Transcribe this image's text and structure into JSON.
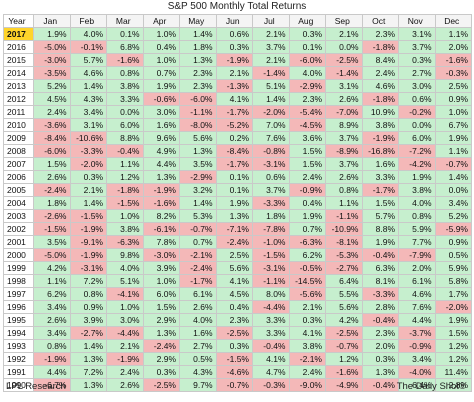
{
  "chart_data": {
    "type": "table",
    "title": "S&P 500 Monthly Total Returns",
    "year_header": "Year",
    "columns": [
      "Jan",
      "Feb",
      "Mar",
      "Apr",
      "May",
      "Jun",
      "Jul",
      "Aug",
      "Sep",
      "Oct",
      "Nov",
      "Dec"
    ],
    "highlight_year": "2017",
    "rows": [
      {
        "year": "2017",
        "values": [
          "1.9%",
          "4.0%",
          "0.1%",
          "1.0%",
          "1.4%",
          "0.6%",
          "2.1%",
          "0.3%",
          "2.1%",
          "2.3%",
          "3.1%",
          "1.1%"
        ]
      },
      {
        "year": "2016",
        "values": [
          "-5.0%",
          "-0.1%",
          "6.8%",
          "0.4%",
          "1.8%",
          "0.3%",
          "3.7%",
          "0.1%",
          "0.0%",
          "-1.8%",
          "3.7%",
          "2.0%"
        ]
      },
      {
        "year": "2015",
        "values": [
          "-3.0%",
          "5.7%",
          "-1.6%",
          "1.0%",
          "1.3%",
          "-1.9%",
          "2.1%",
          "-6.0%",
          "-2.5%",
          "8.4%",
          "0.3%",
          "-1.6%"
        ]
      },
      {
        "year": "2014",
        "values": [
          "-3.5%",
          "4.6%",
          "0.8%",
          "0.7%",
          "2.3%",
          "2.1%",
          "-1.4%",
          "4.0%",
          "-1.4%",
          "2.4%",
          "2.7%",
          "-0.3%"
        ]
      },
      {
        "year": "2013",
        "values": [
          "5.2%",
          "1.4%",
          "3.8%",
          "1.9%",
          "2.3%",
          "-1.3%",
          "5.1%",
          "-2.9%",
          "3.1%",
          "4.6%",
          "3.0%",
          "2.5%"
        ]
      },
      {
        "year": "2012",
        "values": [
          "4.5%",
          "4.3%",
          "3.3%",
          "-0.6%",
          "-6.0%",
          "4.1%",
          "1.4%",
          "2.3%",
          "2.6%",
          "-1.8%",
          "0.6%",
          "0.9%"
        ]
      },
      {
        "year": "2011",
        "values": [
          "2.4%",
          "3.4%",
          "0.0%",
          "3.0%",
          "-1.1%",
          "-1.7%",
          "-2.0%",
          "-5.4%",
          "-7.0%",
          "10.9%",
          "-0.2%",
          "1.0%"
        ]
      },
      {
        "year": "2010",
        "values": [
          "-3.6%",
          "3.1%",
          "6.0%",
          "1.6%",
          "-8.0%",
          "-5.2%",
          "7.0%",
          "-4.5%",
          "8.9%",
          "3.8%",
          "0.0%",
          "6.7%"
        ]
      },
      {
        "year": "2009",
        "values": [
          "-8.4%",
          "-10.6%",
          "8.8%",
          "9.6%",
          "5.6%",
          "0.2%",
          "7.6%",
          "3.6%",
          "3.7%",
          "-1.9%",
          "6.0%",
          "1.9%"
        ]
      },
      {
        "year": "2008",
        "values": [
          "-6.0%",
          "-3.3%",
          "-0.4%",
          "4.9%",
          "1.3%",
          "-8.4%",
          "-0.8%",
          "1.5%",
          "-8.9%",
          "-16.8%",
          "-7.2%",
          "1.1%"
        ]
      },
      {
        "year": "2007",
        "values": [
          "1.5%",
          "-2.0%",
          "1.1%",
          "4.4%",
          "3.5%",
          "-1.7%",
          "-3.1%",
          "1.5%",
          "3.7%",
          "1.6%",
          "-4.2%",
          "-0.7%"
        ]
      },
      {
        "year": "2006",
        "values": [
          "2.6%",
          "0.3%",
          "1.2%",
          "1.3%",
          "-2.9%",
          "0.1%",
          "0.6%",
          "2.4%",
          "2.6%",
          "3.3%",
          "1.9%",
          "1.4%"
        ]
      },
      {
        "year": "2005",
        "values": [
          "-2.4%",
          "2.1%",
          "-1.8%",
          "-1.9%",
          "3.2%",
          "0.1%",
          "3.7%",
          "-0.9%",
          "0.8%",
          "-1.7%",
          "3.8%",
          "0.0%"
        ]
      },
      {
        "year": "2004",
        "values": [
          "1.8%",
          "1.4%",
          "-1.5%",
          "-1.6%",
          "1.4%",
          "1.9%",
          "-3.3%",
          "0.4%",
          "1.1%",
          "1.5%",
          "4.0%",
          "3.4%"
        ]
      },
      {
        "year": "2003",
        "values": [
          "-2.6%",
          "-1.5%",
          "1.0%",
          "8.2%",
          "5.3%",
          "1.3%",
          "1.8%",
          "1.9%",
          "-1.1%",
          "5.7%",
          "0.8%",
          "5.2%"
        ]
      },
      {
        "year": "2002",
        "values": [
          "-1.5%",
          "-1.9%",
          "3.8%",
          "-6.1%",
          "-0.7%",
          "-7.1%",
          "-7.8%",
          "0.7%",
          "-10.9%",
          "8.8%",
          "5.9%",
          "-5.9%"
        ]
      },
      {
        "year": "2001",
        "values": [
          "3.5%",
          "-9.1%",
          "-6.3%",
          "7.8%",
          "0.7%",
          "-2.4%",
          "-1.0%",
          "-6.3%",
          "-8.1%",
          "1.9%",
          "7.7%",
          "0.9%"
        ]
      },
      {
        "year": "2000",
        "values": [
          "-5.0%",
          "-1.9%",
          "9.8%",
          "-3.0%",
          "-2.1%",
          "2.5%",
          "-1.5%",
          "6.2%",
          "-5.3%",
          "-0.4%",
          "-7.9%",
          "0.5%"
        ]
      },
      {
        "year": "1999",
        "values": [
          "4.2%",
          "-3.1%",
          "4.0%",
          "3.9%",
          "-2.4%",
          "5.6%",
          "-3.1%",
          "-0.5%",
          "-2.7%",
          "6.3%",
          "2.0%",
          "5.9%"
        ]
      },
      {
        "year": "1998",
        "values": [
          "1.1%",
          "7.2%",
          "5.1%",
          "1.0%",
          "-1.7%",
          "4.1%",
          "-1.1%",
          "-14.5%",
          "6.4%",
          "8.1%",
          "6.1%",
          "5.8%"
        ]
      },
      {
        "year": "1997",
        "values": [
          "6.2%",
          "0.8%",
          "-4.1%",
          "6.0%",
          "6.1%",
          "4.5%",
          "8.0%",
          "-5.6%",
          "5.5%",
          "-3.3%",
          "4.6%",
          "1.7%"
        ]
      },
      {
        "year": "1996",
        "values": [
          "3.4%",
          "0.9%",
          "1.0%",
          "1.5%",
          "2.6%",
          "0.4%",
          "-4.4%",
          "2.1%",
          "5.6%",
          "2.8%",
          "7.6%",
          "-2.0%"
        ]
      },
      {
        "year": "1995",
        "values": [
          "2.6%",
          "3.9%",
          "3.0%",
          "2.9%",
          "4.0%",
          "2.3%",
          "3.3%",
          "0.3%",
          "4.2%",
          "-0.4%",
          "4.4%",
          "1.9%"
        ]
      },
      {
        "year": "1994",
        "values": [
          "3.4%",
          "-2.7%",
          "-4.4%",
          "1.3%",
          "1.6%",
          "-2.5%",
          "3.3%",
          "4.1%",
          "-2.5%",
          "2.3%",
          "-3.7%",
          "1.5%"
        ]
      },
      {
        "year": "1993",
        "values": [
          "0.8%",
          "1.4%",
          "2.1%",
          "-2.4%",
          "2.7%",
          "0.3%",
          "-0.4%",
          "3.8%",
          "-0.7%",
          "2.0%",
          "-0.9%",
          "1.2%"
        ]
      },
      {
        "year": "1992",
        "values": [
          "-1.9%",
          "1.3%",
          "-1.9%",
          "2.9%",
          "0.5%",
          "-1.5%",
          "4.1%",
          "-2.1%",
          "1.2%",
          "0.3%",
          "3.4%",
          "1.2%"
        ]
      },
      {
        "year": "1991",
        "values": [
          "4.4%",
          "7.2%",
          "2.4%",
          "0.3%",
          "4.3%",
          "-4.6%",
          "4.7%",
          "2.4%",
          "-1.6%",
          "1.3%",
          "-4.0%",
          "11.4%"
        ]
      },
      {
        "year": "1990",
        "values": [
          "-6.7%",
          "1.3%",
          "2.6%",
          "-2.5%",
          "9.7%",
          "-0.7%",
          "-0.3%",
          "-9.0%",
          "-4.9%",
          "-0.4%",
          "6.4%",
          "2.8%"
        ]
      }
    ]
  },
  "footer": {
    "source": "LPL Research",
    "publisher": "The Daily Shot®"
  }
}
